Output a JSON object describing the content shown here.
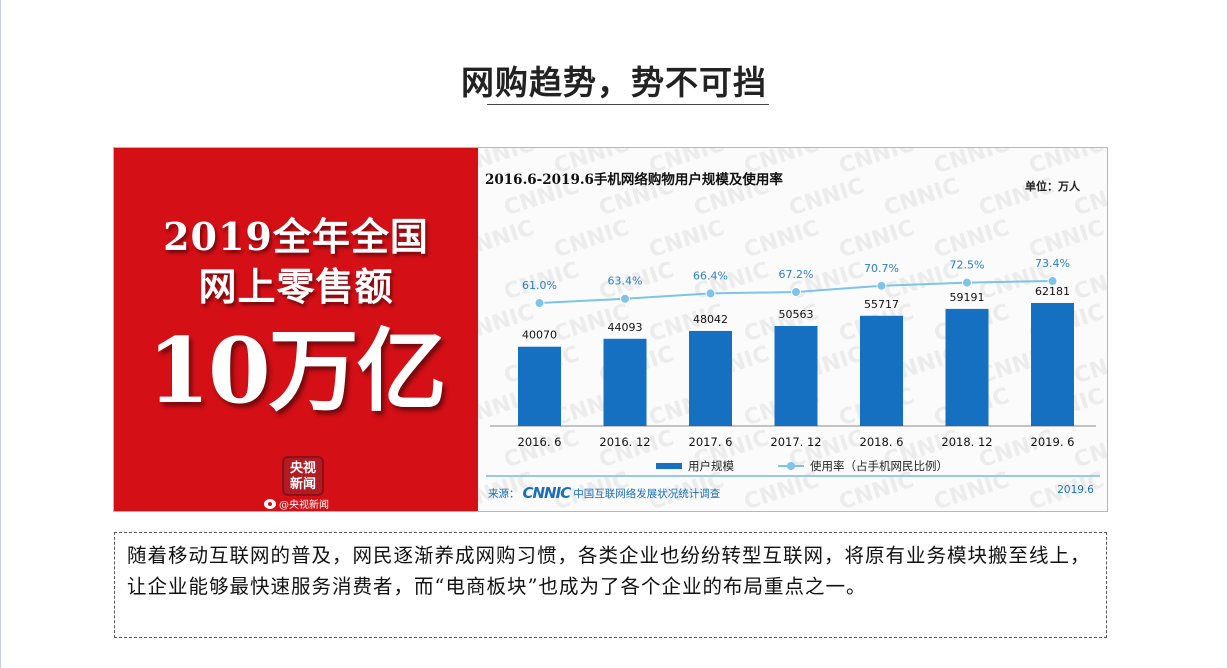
{
  "page_title": "网购趋势，势不可挡",
  "left_panel": {
    "line1": "2019全年全国",
    "line2": "网上零售额",
    "big_text": "10万亿",
    "logo_text": "央视新闻",
    "weibo_handle": "@央视新闻"
  },
  "chart_data": {
    "type": "bar",
    "title": "2016.6-2019.6手机网络购物用户规模及使用率",
    "unit": "单位：万人",
    "categories": [
      "2016. 6",
      "2016. 12",
      "2017. 6",
      "2017. 12",
      "2018. 6",
      "2018. 12",
      "2019. 6"
    ],
    "series": [
      {
        "name": "用户规模",
        "type": "bar",
        "values": [
          40070,
          44093,
          48042,
          50563,
          55717,
          59191,
          62181
        ],
        "color": "#1570c2"
      },
      {
        "name": "使用率（占手机网民比例）",
        "type": "line",
        "values": [
          61.0,
          63.4,
          66.4,
          67.2,
          70.7,
          72.5,
          73.4
        ],
        "labels": [
          "61.0%",
          "63.4%",
          "66.4%",
          "67.2%",
          "70.7%",
          "72.5%",
          "73.4%"
        ],
        "color": "#7ec3ec"
      }
    ],
    "watermark": "CNNIC",
    "source_label": "来源：",
    "source_logo": "CNNIC",
    "source_text": "中国互联网络发展状况统计调查",
    "source_date": "2019.6"
  },
  "body_text": "随着移动互联网的普及，网民逐渐养成网购习惯，各类企业也纷纷转型互联网，将原有业务模块搬至线上，让企业能够最快速服务消费者，而“电商板块”也成为了各个企业的布局重点之一。"
}
